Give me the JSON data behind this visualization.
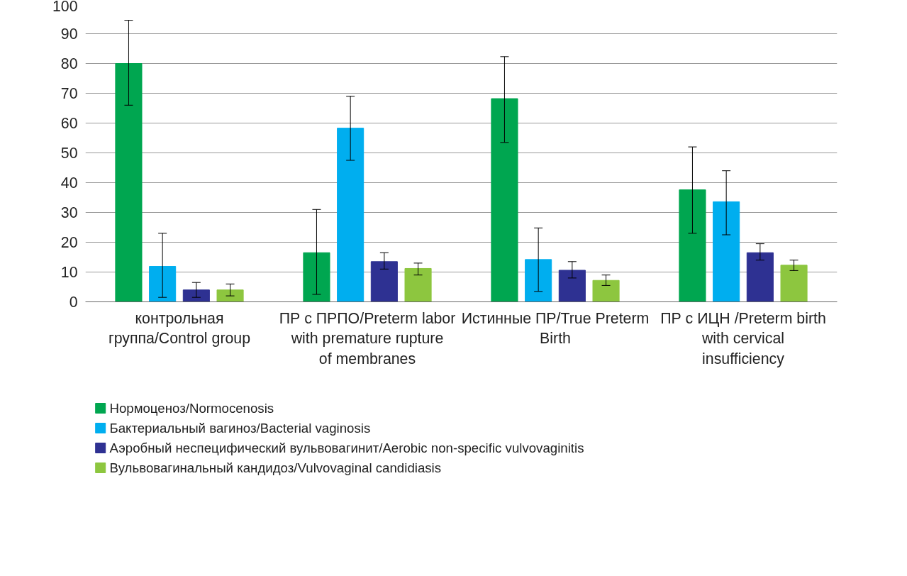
{
  "chart_data": {
    "type": "bar",
    "categories": [
      "контрольная группа/Control group",
      "ПР с ПРПО/Preterm labor with premature rupture of membranes",
      "Истинные ПР/True Preterm Birth",
      "ПР с ИЦН /Preterm birth with cervical insufficiency"
    ],
    "series": [
      {
        "name": "Нормоценоз/Normocenosis",
        "color": "#00a650",
        "values": [
          80,
          16.5,
          68.2,
          37.6
        ],
        "errors": [
          [
            66,
            94.5
          ],
          [
            2.5,
            31
          ],
          [
            53.5,
            82.3
          ],
          [
            23,
            52
          ]
        ]
      },
      {
        "name": "Бактериальный вагиноз/Bacterial vaginosis",
        "color": "#00aeef",
        "values": [
          11.9,
          58.3,
          14.2,
          33.6
        ],
        "errors": [
          [
            1.5,
            23
          ],
          [
            47.5,
            69
          ],
          [
            3.5,
            24.8
          ],
          [
            22.5,
            44
          ]
        ]
      },
      {
        "name": "Аэробный неспецифический вульвовагинит/Aerobic non-specific vulvovaginitis",
        "color": "#2e3192",
        "values": [
          4,
          13.5,
          10.6,
          16.5
        ],
        "errors": [
          [
            1.5,
            6.5
          ],
          [
            11,
            16.5
          ],
          [
            8,
            13.5
          ],
          [
            14,
            19.5
          ]
        ]
      },
      {
        "name": "Вульвовагинальный кандидоз/Vulvovaginal candidiasis",
        "color": "#8dc63f",
        "values": [
          4,
          11.2,
          7.2,
          12.3
        ],
        "errors": [
          [
            2,
            6
          ],
          [
            9,
            13
          ],
          [
            5.5,
            9
          ],
          [
            10.5,
            14
          ]
        ]
      }
    ],
    "ylim": [
      0,
      100
    ],
    "yticks": [
      0,
      10,
      20,
      30,
      40,
      50,
      60,
      70,
      80,
      90,
      100
    ],
    "grid": "y",
    "legend": "bottom left"
  }
}
